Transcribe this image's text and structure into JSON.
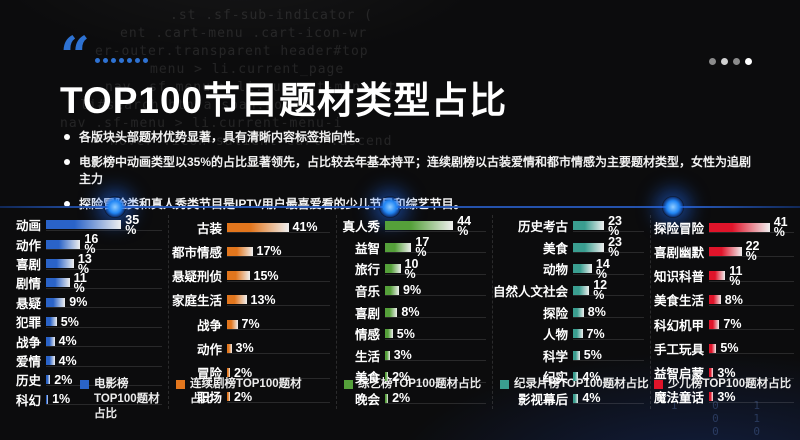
{
  "slide": {
    "title": "TOP100节目题材类型占比",
    "quote_mark": "“",
    "quote_dot_count": 7,
    "accent_color": "#2e72d2",
    "bullets": [
      "各版块头部题材优势显著，具有清晰内容标签指向性。",
      "电影榜中动画类型以35%的占比显著领先，占比较去年基本持平；连续剧榜以古装爱情和都市情感为主要题材类型，女性为追剧主力",
      "探险冒险类和真人秀类节目是IPTV用户最喜爱看的少儿节目和综艺节目。"
    ],
    "pagination_dot_colors": [
      "#8b8b8b",
      "#d0d0d0",
      "#8b8b8b",
      "#ffffff"
    ]
  },
  "background": {
    "code_lines": [
      ".st .sf-sub-indicator (",
      "ent .cart-menu .cart-icon-wr",
      "er-outer.transparent header#top",
      "menu > li.current_page",
      "nav .sf-menu > li.current-menu-it",
      "li#search-btn a span:hover s",
      "nav .sf-menu > li.current-menu-i",
      "hover .icon-salient-cart .ascend"
    ],
    "binary_fragment": "1 0  1\n0  1\n0 0"
  },
  "chart_data": [
    {
      "type": "bar",
      "orientation": "horizontal",
      "title": "电影榜TOP100题材占比",
      "color": "#2a63c8",
      "categories": [
        "动画",
        "动作",
        "喜剧",
        "剧情",
        "悬疑",
        "犯罪",
        "战争",
        "爱情",
        "历史",
        "科幻"
      ],
      "values": [
        35,
        16,
        13,
        11,
        9,
        5,
        4,
        4,
        2,
        1
      ],
      "value_labels": [
        "35\n%",
        "16\n%",
        "13\n%",
        "11\n%",
        "9%",
        "5%",
        "4%",
        "4%",
        "2%",
        "1%"
      ]
    },
    {
      "type": "bar",
      "orientation": "horizontal",
      "title": "连续剧榜TOP100题材占比",
      "color": "#e2761d",
      "categories": [
        "古装",
        "都市情感",
        "悬疑刑侦",
        "家庭生活",
        "战争",
        "动作",
        "冒险",
        "职场"
      ],
      "values": [
        41,
        17,
        15,
        13,
        7,
        3,
        2,
        2
      ],
      "value_labels": [
        "41%",
        "17%",
        "15%",
        "13%",
        "7%",
        "3%",
        "2%",
        "2%"
      ]
    },
    {
      "type": "bar",
      "orientation": "horizontal",
      "title": "综艺榜TOP100题材占比",
      "color": "#55a03a",
      "categories": [
        "真人秀",
        "益智",
        "旅行",
        "音乐",
        "喜剧",
        "情感",
        "生活",
        "美食",
        "晚会"
      ],
      "values": [
        44,
        17,
        10,
        9,
        8,
        5,
        3,
        2,
        2
      ],
      "value_labels": [
        "44\n%",
        "17\n%",
        "10\n%",
        "9%",
        "8%",
        "5%",
        "3%",
        "2%",
        "2%"
      ]
    },
    {
      "type": "bar",
      "orientation": "horizontal",
      "title": "纪录片榜TOP100题材占比",
      "color": "#3a9e90",
      "categories": [
        "历史考古",
        "美食",
        "动物",
        "自然人文社会",
        "探险",
        "人物",
        "科学",
        "纪实",
        "影视幕后"
      ],
      "values": [
        23,
        23,
        14,
        12,
        8,
        7,
        5,
        4,
        4
      ],
      "value_labels": [
        "23\n%",
        "23\n%",
        "14\n%",
        "12\n%",
        "8%",
        "7%",
        "5%",
        "4%",
        "4%"
      ]
    },
    {
      "type": "bar",
      "orientation": "horizontal",
      "title": "少儿榜TOP100题材占比",
      "color": "#e0142a",
      "categories": [
        "探险冒险",
        "喜剧幽默",
        "知识科普",
        "美食生活",
        "科幻机甲",
        "手工玩具",
        "益智启蒙",
        "魔法童话"
      ],
      "values": [
        41,
        22,
        11,
        8,
        7,
        5,
        3,
        3
      ],
      "value_labels": [
        "41\n%",
        "22\n%",
        "11\n%",
        "8%",
        "7%",
        "5%",
        "3%",
        "3%"
      ]
    }
  ]
}
